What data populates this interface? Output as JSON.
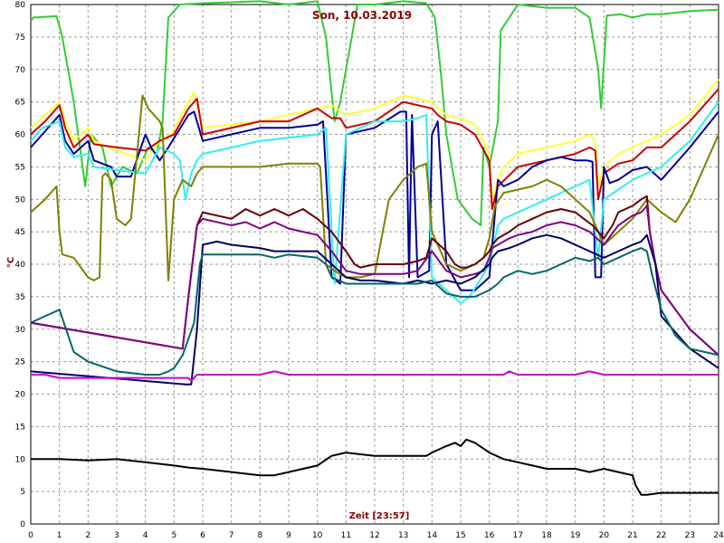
{
  "chart_data": {
    "type": "line",
    "title": "Son, 10.03.2019",
    "xlabel": "Zeit [23:57]",
    "ylabel": "°C",
    "xlim": [
      0,
      24
    ],
    "ylim": [
      0,
      80
    ],
    "x_ticks": [
      0,
      1,
      2,
      3,
      4,
      5,
      6,
      7,
      8,
      9,
      10,
      11,
      12,
      13,
      14,
      15,
      16,
      17,
      18,
      19,
      20,
      21,
      22,
      23,
      24
    ],
    "y_ticks": [
      0,
      5,
      10,
      15,
      20,
      25,
      30,
      35,
      40,
      45,
      50,
      55,
      60,
      65,
      70,
      75,
      80
    ],
    "grid": true,
    "series": [
      {
        "color": "#33cc33",
        "x": [
          0,
          0.1,
          0.9,
          1.1,
          1.5,
          1.9,
          2.1,
          2.5,
          2.8,
          3.2,
          3.7,
          4.1,
          4.4,
          4.6,
          4.8,
          5.2,
          6,
          8,
          9,
          10,
          10.3,
          10.6,
          10.8,
          11.4,
          12,
          13,
          13.8,
          14.1,
          14.3,
          14.5,
          14.9,
          15.4,
          15.7,
          15.8,
          16,
          16.3,
          16.4,
          17,
          18,
          19,
          19.5,
          19.8,
          19.9,
          20.1,
          20.6,
          21,
          21.5,
          22,
          23,
          24
        ],
        "y": [
          77.5,
          78,
          78.2,
          75,
          65,
          52,
          60,
          58,
          52,
          55,
          54,
          58,
          57,
          62,
          78,
          80,
          80.2,
          80.5,
          80,
          80.5,
          75,
          62,
          65,
          80,
          80,
          80.5,
          80.2,
          78,
          70,
          60,
          50,
          47,
          46,
          58,
          55,
          62,
          76,
          80,
          79.5,
          79.5,
          78,
          70,
          64,
          78.3,
          78.5,
          78,
          78.5,
          78.5,
          79,
          79.2
        ]
      },
      {
        "color": "#ffff33",
        "x": [
          0,
          0.5,
          1,
          1.2,
          1.5,
          2,
          2.2,
          3,
          4,
          4.5,
          4.9,
          5.5,
          5.7,
          6,
          8,
          9,
          10,
          10.5,
          11,
          12,
          13,
          14,
          14.5,
          15,
          15.5,
          16,
          16.1,
          16.3,
          16.5,
          17,
          18,
          19,
          19.5,
          19.7,
          19.8,
          20,
          20.5,
          21,
          21.5,
          22,
          23,
          24
        ],
        "y": [
          61,
          63,
          65,
          62,
          59,
          61,
          59,
          57.5,
          56,
          59,
          60,
          65,
          66.5,
          61,
          62,
          63,
          64,
          64.5,
          63,
          64,
          66,
          65,
          63,
          62.5,
          61.5,
          57,
          50,
          53,
          55,
          57,
          58,
          59,
          60,
          59,
          52,
          55,
          57,
          58,
          59,
          60,
          63,
          68.5
        ]
      },
      {
        "color": "#cc0000",
        "x": [
          0,
          0.5,
          1,
          1.2,
          1.5,
          2,
          2.2,
          3,
          4,
          4.5,
          5,
          5.5,
          5.8,
          6,
          8,
          9,
          10,
          10.5,
          10.8,
          11,
          12,
          13,
          14,
          14.2,
          14.5,
          15,
          15.5,
          16,
          16.1,
          16.3,
          17,
          18,
          19,
          19.5,
          19.7,
          19.8,
          20,
          20.5,
          21,
          21.5,
          22,
          23,
          24
        ],
        "y": [
          60,
          62,
          64.5,
          61,
          58,
          60,
          58.5,
          58,
          57.5,
          59,
          60,
          64,
          65.5,
          60,
          62,
          62,
          64,
          62.5,
          62.5,
          61,
          62,
          65,
          64,
          63,
          62,
          61.5,
          60,
          56,
          48.5,
          52,
          55,
          56,
          57,
          58,
          57.5,
          50,
          54,
          55.5,
          56,
          58,
          58,
          62,
          67
        ]
      },
      {
        "color": "#000099",
        "x": [
          0,
          0.4,
          1,
          1.2,
          1.5,
          2,
          2.2,
          2.8,
          3,
          3.5,
          4,
          4.2,
          4.5,
          4.8,
          5.5,
          5.7,
          6,
          8,
          9,
          10,
          10.2,
          10.5,
          10.8,
          11,
          12,
          12.9,
          13.1,
          13.2,
          13.3,
          13.5,
          13.9,
          14,
          14.2,
          14.5,
          15,
          15.5,
          16,
          16.3,
          16.5,
          17,
          17.5,
          18,
          18.5,
          19,
          19.4,
          19.6,
          19.7,
          19.9,
          20,
          20.2,
          20.5,
          21,
          21.5,
          22,
          23,
          24
        ],
        "y": [
          58,
          60,
          63,
          59,
          57,
          59,
          56,
          55,
          53.5,
          53.5,
          60,
          58,
          56,
          58,
          63,
          63.5,
          59,
          61,
          61,
          61.5,
          62,
          38,
          37,
          60,
          61,
          63.5,
          63.5,
          38,
          63,
          38,
          39,
          60,
          62,
          40,
          36,
          36,
          38,
          53,
          52,
          53,
          55,
          56,
          56.5,
          56,
          56,
          55.8,
          38,
          38,
          55,
          52.5,
          53,
          54.5,
          55,
          53,
          58,
          63.5
        ]
      },
      {
        "color": "#33eeee",
        "x": [
          0,
          0.4,
          1,
          1.2,
          1.5,
          2,
          2.2,
          3,
          4,
          4.5,
          5,
          5.2,
          5.4,
          5.6,
          5.8,
          6,
          7,
          8,
          9,
          10,
          10.3,
          10.6,
          11,
          11.5,
          12,
          13,
          13.5,
          13.8,
          14,
          14.5,
          15,
          15.3,
          15.6,
          16,
          16.3,
          16.5,
          17,
          18,
          19,
          19.5,
          19.8,
          20,
          20.5,
          21,
          21.5,
          22,
          23,
          24
        ],
        "y": [
          59,
          61,
          62,
          58,
          56.5,
          57,
          55,
          54.5,
          54,
          58,
          57,
          56,
          50,
          54,
          56,
          57,
          58,
          59,
          59.5,
          60,
          61,
          37,
          60,
          61,
          62,
          62,
          62.5,
          63,
          38,
          36,
          34,
          35,
          37,
          40,
          46,
          47,
          48,
          50,
          52,
          53,
          41,
          50,
          51.5,
          53,
          54,
          55,
          59,
          65
        ]
      },
      {
        "color": "#808000",
        "x": [
          0,
          0.5,
          0.9,
          1,
          1.1,
          1.5,
          2,
          2.2,
          2.4,
          2.5,
          2.6,
          2.8,
          3,
          3.3,
          3.5,
          3.9,
          4.1,
          4.3,
          4.5,
          4.6,
          4.8,
          5,
          5.3,
          5.6,
          5.8,
          6,
          6.5,
          7,
          8,
          9,
          10,
          10.1,
          10.3,
          10.6,
          11,
          11.5,
          12,
          12.5,
          13,
          13.5,
          13.8,
          14,
          14.5,
          15,
          15.5,
          15.8,
          16,
          16.2,
          16.5,
          17,
          17.5,
          18,
          18.5,
          19,
          19.5,
          19.8,
          20,
          20.5,
          21,
          21.5,
          22,
          22.5,
          23,
          24
        ],
        "y": [
          48,
          50,
          52,
          45,
          41.5,
          41,
          38,
          37.5,
          38,
          53.5,
          54,
          53,
          47,
          46,
          47,
          66,
          64,
          63,
          62,
          61,
          37.5,
          50,
          53,
          52,
          54,
          55,
          55,
          55,
          55,
          55.5,
          55.5,
          55,
          40,
          39,
          38,
          38,
          38.5,
          50,
          53,
          55,
          55.5,
          45,
          40,
          39,
          40,
          41,
          44,
          49,
          51,
          51.5,
          52,
          53,
          52,
          50,
          48,
          45,
          43,
          45,
          47,
          50,
          48,
          46.5,
          50,
          60
        ]
      },
      {
        "color": "#660000",
        "x": [
          0,
          5.3,
          5.5,
          5.8,
          6,
          7,
          7.5,
          8,
          8.5,
          9,
          9.5,
          10,
          10.5,
          11,
          11.3,
          11.5,
          12,
          13,
          13.5,
          13.8,
          14,
          14.5,
          14.8,
          15,
          15.2,
          15.5,
          15.8,
          16,
          16.1,
          16.3,
          16.7,
          17,
          17.5,
          18,
          18.5,
          19,
          19.3,
          19.6,
          19.8,
          20,
          20.3,
          20.5,
          21,
          21.3,
          21.5,
          21.6,
          21.8,
          22,
          23,
          24
        ],
        "y": [
          31,
          27,
          35,
          46,
          48,
          47,
          48.5,
          47.5,
          48.5,
          47.5,
          48.5,
          47,
          45,
          42,
          40,
          39.5,
          40,
          40,
          40.5,
          41,
          44,
          42,
          40,
          39.5,
          39.5,
          40,
          41,
          42,
          43,
          44,
          45,
          46,
          47,
          48,
          48.5,
          48,
          47,
          46,
          45,
          44,
          46,
          48,
          49,
          50,
          50.5,
          45,
          40,
          36,
          30,
          26
        ]
      },
      {
        "color": "#800080",
        "x": [
          0,
          5.3,
          5.5,
          5.8,
          6,
          7,
          7.5,
          8,
          8.5,
          9,
          9.5,
          10,
          10.5,
          11,
          11.5,
          12,
          13,
          13.5,
          14,
          14.5,
          15,
          15.5,
          15.8,
          16,
          16.1,
          16.3,
          16.7,
          17,
          17.5,
          18,
          18.5,
          19,
          19.5,
          20,
          20.5,
          21,
          21.3,
          21.5,
          21.6,
          21.8,
          22,
          23,
          24
        ],
        "y": [
          31,
          27,
          35,
          46,
          47,
          46,
          46.5,
          45.5,
          46.5,
          45.5,
          45,
          44.5,
          42,
          39,
          38.5,
          38.5,
          38.5,
          39,
          42,
          39,
          38,
          38.5,
          39,
          41,
          42.5,
          43,
          44,
          44.5,
          45,
          46,
          46.5,
          46,
          45,
          43,
          46,
          47.5,
          48,
          49,
          45,
          40,
          36,
          30,
          26
        ]
      },
      {
        "color": "#000066",
        "x": [
          0,
          5.4,
          5.6,
          5.8,
          6,
          6.5,
          7,
          8,
          8.5,
          9,
          10,
          10.5,
          11,
          11.5,
          12,
          13,
          13.5,
          14,
          14.5,
          15,
          15.5,
          16,
          16.1,
          16.3,
          16.7,
          17,
          17.5,
          18,
          18.5,
          19,
          19.5,
          20,
          20.5,
          21,
          21.3,
          21.5,
          21.8,
          22,
          23,
          24
        ],
        "y": [
          23.5,
          21.5,
          21.5,
          30,
          43,
          43.5,
          43,
          42.5,
          42,
          42,
          42,
          40,
          38,
          37.5,
          37.5,
          37,
          37.5,
          37,
          37.5,
          37,
          38,
          40,
          41,
          42,
          42.5,
          43,
          44,
          44.5,
          44,
          43,
          42,
          41,
          42,
          43,
          43.5,
          44.5,
          40,
          32,
          27,
          24
        ]
      },
      {
        "color": "#006666",
        "x": [
          0,
          0.5,
          1,
          1.5,
          2,
          3,
          4,
          4.5,
          4.8,
          5,
          5.3,
          5.5,
          5.7,
          5.9,
          6,
          6.5,
          7,
          8,
          8.5,
          9,
          10,
          10.3,
          10.5,
          11,
          11.5,
          12,
          13,
          13.5,
          14,
          14.5,
          15,
          15.5,
          16,
          16.3,
          16.5,
          17,
          17.5,
          18,
          18.5,
          19,
          19.5,
          19.8,
          20,
          20.5,
          21,
          21.3,
          21.5,
          21.7,
          22,
          22.5,
          23,
          24
        ],
        "y": [
          31,
          32,
          33,
          26.5,
          25,
          23.5,
          23,
          23,
          23.5,
          24,
          26,
          28.5,
          31,
          40,
          41.5,
          41.5,
          41.5,
          41.5,
          41,
          41.5,
          41,
          40,
          38,
          37,
          37,
          37,
          37,
          37,
          37.5,
          35.5,
          35,
          35,
          36,
          37,
          38,
          39,
          38.5,
          39,
          40,
          41,
          40.5,
          41,
          40,
          41,
          42,
          42.5,
          42,
          38,
          33,
          29,
          27,
          26
        ]
      },
      {
        "color": "#cc00cc",
        "x": [
          0,
          0.5,
          1,
          2,
          3,
          4,
          5,
          5.5,
          5.6,
          5.8,
          6,
          8,
          8.5,
          9,
          10,
          12,
          14,
          16,
          16.5,
          16.7,
          17,
          19,
          19.5,
          20,
          24
        ],
        "y": [
          23,
          23,
          22.5,
          22.5,
          22.5,
          22.5,
          22.5,
          22.5,
          22,
          23,
          23,
          23,
          23.5,
          23,
          23,
          23,
          23,
          23,
          23,
          23.5,
          23,
          23,
          23.5,
          23,
          23
        ]
      },
      {
        "color": "#000000",
        "x": [
          0,
          1,
          2,
          3,
          4,
          5,
          5.5,
          6,
          7,
          8,
          8.5,
          9,
          9.5,
          10,
          10.5,
          11,
          12,
          13,
          13.8,
          14,
          14.5,
          14.8,
          15,
          15.2,
          15.5,
          16,
          16.5,
          17,
          17.5,
          18,
          18.5,
          19,
          19.5,
          20,
          20.5,
          21,
          21.1,
          21.3,
          21.5,
          22,
          23,
          24
        ],
        "y": [
          10,
          10,
          9.8,
          10,
          9.5,
          9,
          8.7,
          8.5,
          8,
          7.5,
          7.5,
          8,
          8.5,
          9,
          10.5,
          11,
          10.5,
          10.5,
          10.5,
          11,
          12,
          12.5,
          12,
          13,
          12.5,
          11,
          10,
          9.5,
          9,
          8.5,
          8.5,
          8.5,
          8,
          8.5,
          8,
          7.5,
          6,
          4.5,
          4.5,
          4.8,
          4.8,
          4.8
        ]
      }
    ]
  }
}
